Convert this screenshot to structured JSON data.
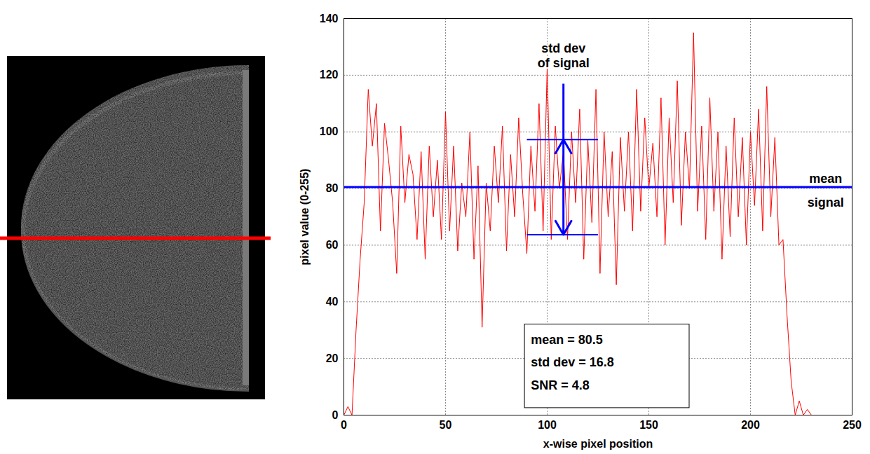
{
  "chart_data": {
    "type": "line",
    "x_label": "x-wise pixel position",
    "y_label": "pixel value (0-255)",
    "xlim": [
      0,
      250
    ],
    "xticks": [
      0,
      50,
      100,
      150,
      200,
      250
    ],
    "ylim": [
      0,
      140
    ],
    "yticks": [
      0,
      20,
      40,
      60,
      80,
      100,
      120,
      140
    ],
    "grid": true,
    "color": "#ff0000",
    "x": [
      0,
      2,
      4,
      6,
      8,
      10,
      12,
      14,
      16,
      18,
      20,
      22,
      24,
      26,
      28,
      30,
      32,
      34,
      36,
      38,
      40,
      42,
      44,
      46,
      48,
      50,
      52,
      54,
      56,
      58,
      60,
      62,
      64,
      66,
      68,
      70,
      72,
      74,
      76,
      78,
      80,
      82,
      84,
      86,
      88,
      90,
      92,
      94,
      96,
      98,
      100,
      102,
      104,
      106,
      108,
      110,
      112,
      114,
      116,
      118,
      120,
      122,
      124,
      126,
      128,
      130,
      132,
      134,
      136,
      138,
      140,
      142,
      144,
      146,
      148,
      150,
      152,
      154,
      156,
      158,
      160,
      162,
      164,
      166,
      168,
      170,
      172,
      174,
      176,
      178,
      180,
      182,
      184,
      186,
      188,
      190,
      192,
      194,
      196,
      198,
      200,
      202,
      204,
      206,
      208,
      210,
      212,
      214,
      216,
      218,
      220,
      222,
      224,
      226,
      228,
      230
    ],
    "values": [
      0,
      3,
      0,
      30,
      55,
      75,
      115,
      95,
      110,
      65,
      103,
      90,
      75,
      50,
      102,
      75,
      92,
      85,
      62,
      93,
      55,
      95,
      70,
      90,
      62,
      107,
      65,
      95,
      58,
      82,
      70,
      100,
      55,
      88,
      31,
      82,
      65,
      95,
      75,
      102,
      58,
      92,
      70,
      105,
      78,
      57,
      95,
      72,
      110,
      65,
      123,
      62,
      102,
      80,
      93,
      62,
      100,
      75,
      108,
      55,
      97,
      68,
      115,
      50,
      100,
      70,
      93,
      46,
      98,
      72,
      100,
      65,
      115,
      72,
      105,
      80,
      96,
      70,
      112,
      60,
      105,
      75,
      118,
      67,
      100,
      80,
      135,
      72,
      102,
      62,
      112,
      72,
      100,
      55,
      95,
      63,
      105,
      70,
      98,
      60,
      100,
      74,
      108,
      65,
      116,
      70,
      98,
      60,
      62,
      35,
      12,
      0,
      5,
      0,
      2,
      0
    ],
    "mean": 80.5,
    "std_dev": 16.8,
    "mean_label": "mean\nsignal",
    "std_dev_label": "std dev\nof signal",
    "stats": [
      "mean = 80.5",
      "std dev = 16.8",
      "SNR = 4.8"
    ]
  }
}
